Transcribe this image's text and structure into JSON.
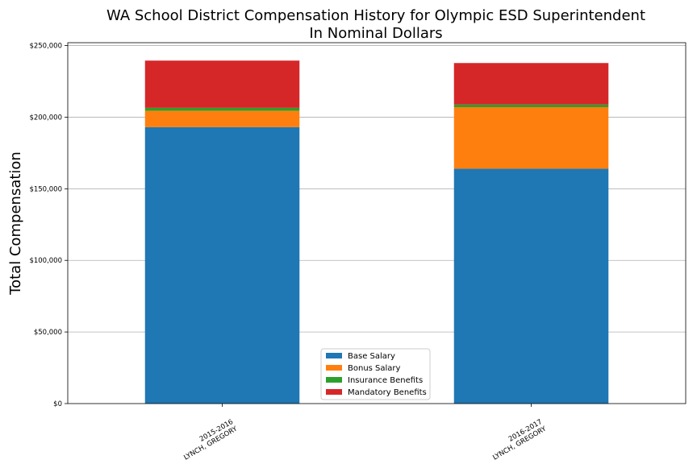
{
  "chart_data": {
    "type": "bar",
    "stacked": true,
    "title": "WA School District Compensation History for Olympic ESD Superintendent",
    "subtitle": "In Nominal Dollars",
    "xlabel": "",
    "ylabel": "Total Compensation",
    "ylim": [
      0,
      252000
    ],
    "yticks": [
      0,
      50000,
      100000,
      150000,
      200000,
      250000
    ],
    "ytick_labels": [
      "$0",
      "$50,000",
      "$100,000",
      "$150,000",
      "$200,000",
      "$250,000"
    ],
    "grid": "horizontal",
    "legend_position": "bottom-center",
    "categories": [
      {
        "year": "2015-2016",
        "name": "LYNCH, GREGORY"
      },
      {
        "year": "2016-2017",
        "name": "LYNCH, GREGORY"
      }
    ],
    "series": [
      {
        "name": "Base Salary",
        "color": "#1f77b4",
        "values": [
          193000,
          164000
        ]
      },
      {
        "name": "Bonus Salary",
        "color": "#ff7f0e",
        "values": [
          11500,
          43000
        ]
      },
      {
        "name": "Insurance Benefits",
        "color": "#2ca02c",
        "values": [
          2000,
          1800
        ]
      },
      {
        "name": "Mandatory Benefits",
        "color": "#d62728",
        "values": [
          33000,
          29000
        ]
      }
    ]
  }
}
